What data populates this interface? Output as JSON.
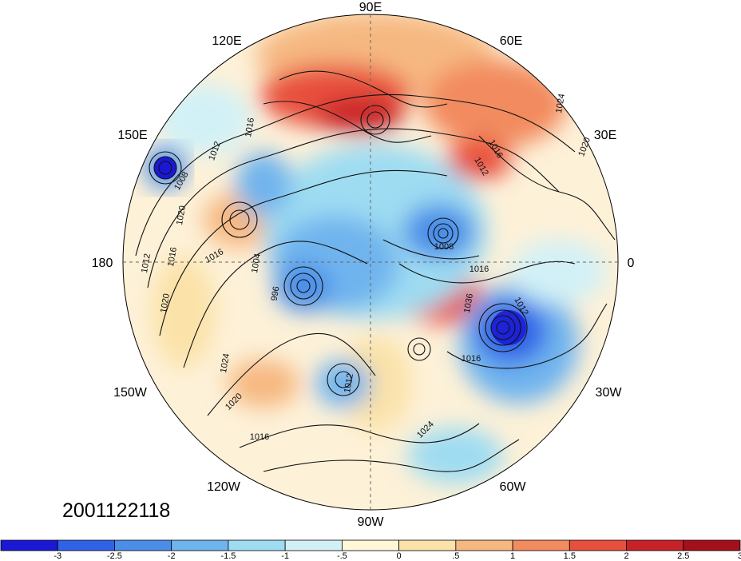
{
  "date_stamp": "2001122118",
  "longitude_labels": {
    "top": "90E",
    "upper_left": "120E",
    "upper_right": "60E",
    "left_upper": "150E",
    "right_upper": "30E",
    "left": "180",
    "right": "0",
    "left_lower": "150W",
    "right_lower": "30W",
    "lower_left": "120W",
    "lower_right": "60W",
    "bottom": "90W"
  },
  "contour_labels": [
    "1016",
    "1012",
    "1008",
    "1020",
    "1016",
    "1004",
    "996",
    "1012",
    "1016",
    "1020",
    "1024",
    "1020",
    "1016",
    "1012",
    "1016",
    "1024",
    "1020",
    "1016",
    "1008",
    "1012",
    "1036",
    "1024",
    "1016",
    "1012"
  ],
  "colorbar": {
    "labels": [
      "-3",
      "-2.5",
      "-2",
      "-1.5",
      "-1",
      "-.5",
      "0",
      ".5",
      "1",
      "1.5",
      "2",
      "2.5",
      "3"
    ],
    "colors": [
      "#1a18d4",
      "#2f62e6",
      "#4a8ee8",
      "#6fb4ee",
      "#9edcf2",
      "#d2f1f7",
      "#fff7d8",
      "#fbe2a8",
      "#f6b881",
      "#f28b5f",
      "#e8503e",
      "#c82128",
      "#a3101c"
    ]
  }
}
